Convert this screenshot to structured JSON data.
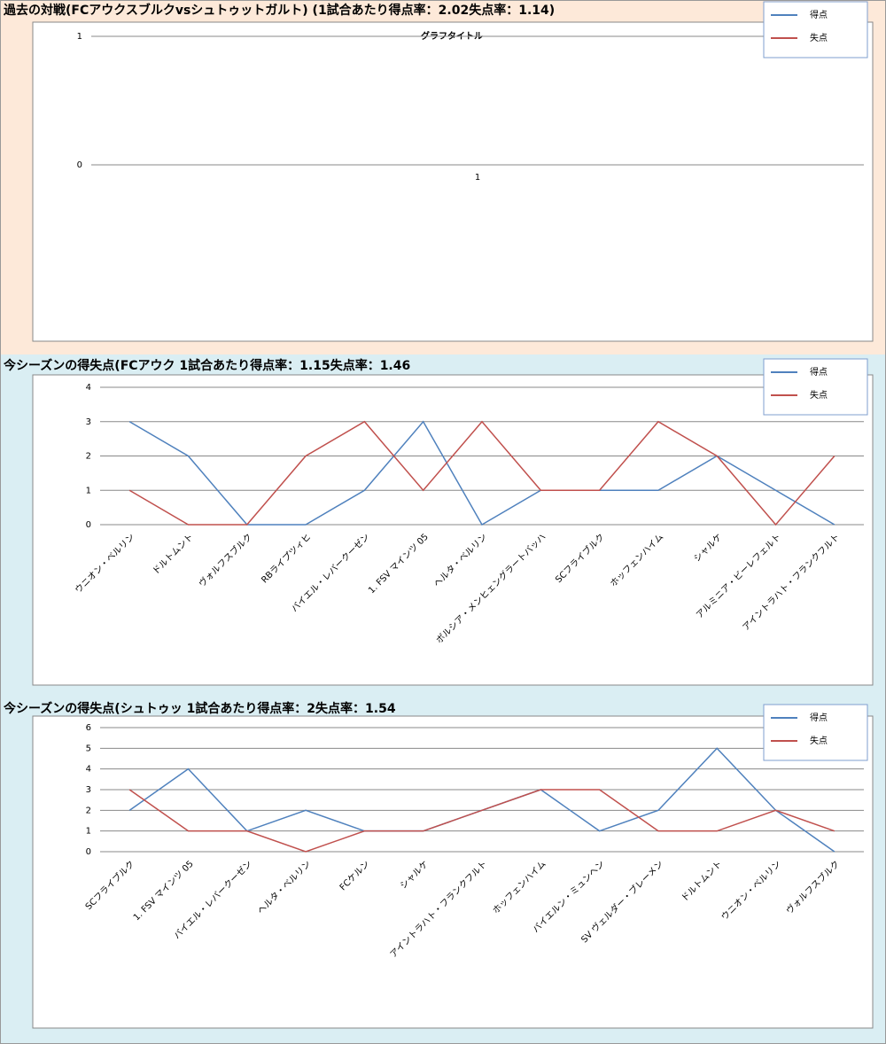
{
  "chart_data": [
    {
      "type": "line",
      "heading": "過去の対戦(FCアウクスブルクvsシュトゥットガルト) (1試合あたり得点率：2.02失点率：1.14)",
      "title": "グラフタイトル",
      "categories": [
        "1"
      ],
      "series": [
        {
          "name": "得点",
          "color": "#4f81bd",
          "values": [
            null
          ]
        },
        {
          "name": "失点",
          "color": "#c0504d",
          "values": [
            null
          ]
        }
      ],
      "ylim": [
        0,
        1
      ],
      "yticks": [
        0,
        1
      ],
      "grid": true
    },
    {
      "type": "line",
      "heading": "今シーズンの得失点(FCアウク 1試合あたり得点率：1.15失点率：1.46",
      "categories": [
        "ウニオン・ベルリン",
        "ドルトムント",
        "ヴォルフスブルク",
        "RBライプツィヒ",
        "バイエル・レバークーゼン",
        "1. FSV マインツ 05",
        "ヘルタ・ベルリン",
        "ボルシア・メンヒェングラートバッハ",
        "SCフライブルク",
        "ホッフェンハイム",
        "シャルケ",
        "アルミニア・ビーレフェルト",
        "アイントラハト・フランクフルト"
      ],
      "series": [
        {
          "name": "得点",
          "color": "#4f81bd",
          "values": [
            3,
            2,
            0,
            0,
            1,
            3,
            0,
            1,
            1,
            1,
            2,
            1,
            0
          ]
        },
        {
          "name": "失点",
          "color": "#c0504d",
          "values": [
            1,
            0,
            0,
            2,
            3,
            1,
            3,
            1,
            1,
            3,
            2,
            0,
            2
          ]
        }
      ],
      "ylim": [
        0,
        4
      ],
      "yticks": [
        0,
        1,
        2,
        3,
        4
      ],
      "grid": true
    },
    {
      "type": "line",
      "heading": "今シーズンの得失点(シュトゥッ 1試合あたり得点率：2失点率：1.54",
      "categories": [
        "SCフライブルク",
        "1. FSV マインツ 05",
        "バイエル・レバークーゼン",
        "ヘルタ・ベルリン",
        "FCケルン",
        "シャルケ",
        "アイントラハト・フランクフルト",
        "ホッフェンハイム",
        "バイエルン・ミュンヘン",
        "SV ヴェルダー・ブレーメン",
        "ドルトムント",
        "ウニオン・ベルリン",
        "ヴォルフスブルク"
      ],
      "series": [
        {
          "name": "得点",
          "color": "#4f81bd",
          "values": [
            2,
            4,
            1,
            2,
            1,
            1,
            2,
            3,
            1,
            2,
            5,
            2,
            0
          ]
        },
        {
          "name": "失点",
          "color": "#c0504d",
          "values": [
            3,
            1,
            1,
            0,
            1,
            1,
            2,
            3,
            3,
            1,
            1,
            2,
            1
          ]
        }
      ],
      "ylim": [
        0,
        6
      ],
      "yticks": [
        0,
        1,
        2,
        3,
        4,
        5,
        6
      ],
      "grid": true
    }
  ]
}
